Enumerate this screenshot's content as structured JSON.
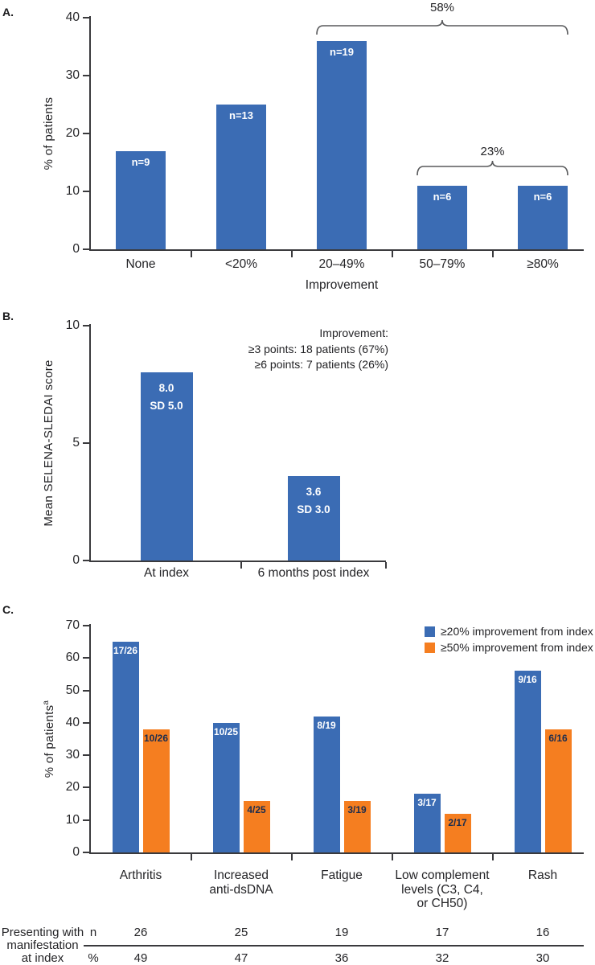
{
  "chart_data": [
    {
      "id": "A",
      "type": "bar",
      "panel_label": "A.",
      "ylabel": "% of patients",
      "ylim": [
        0,
        40
      ],
      "yticks": [
        0,
        10,
        20,
        30,
        40
      ],
      "xlabel": "Improvement",
      "categories": [
        "None",
        "<20%",
        "20–49%",
        "50–79%",
        "≥80%"
      ],
      "values": [
        17,
        25,
        36,
        11,
        11
      ],
      "bar_labels": [
        "n=9",
        "n=13",
        "n=19",
        "n=6",
        "n=6"
      ],
      "bar_color": "#3B6CB4",
      "bar_label_color": "#FFFFFF",
      "braces": [
        {
          "label": "58%",
          "from_index": 2,
          "to_index": 4
        },
        {
          "label": "23%",
          "from_index": 3,
          "to_index": 4
        }
      ],
      "legend_position": "none",
      "grid": "off"
    },
    {
      "id": "B",
      "type": "bar",
      "panel_label": "B.",
      "ylabel": "Mean SELENA-SLEDAI score",
      "ylim": [
        0,
        10
      ],
      "yticks": [
        0,
        5,
        10
      ],
      "categories": [
        "At index",
        "6 months post index"
      ],
      "values": [
        8.0,
        3.6
      ],
      "bar_labels": [
        [
          "8.0",
          "SD 5.0"
        ],
        [
          "3.6",
          "SD 3.0"
        ]
      ],
      "bar_color": "#3B6CB4",
      "bar_label_color": "#FFFFFF",
      "annotation": {
        "lines": [
          "Improvement:",
          "≥3 points: 18 patients (67%)",
          "≥6 points: 7 patients (26%)"
        ],
        "align": "right"
      },
      "legend_position": "none",
      "grid": "off"
    },
    {
      "id": "C",
      "type": "bar",
      "panel_label": "C.",
      "ylabel": "% of patients",
      "ylabel_superscript": "a",
      "ylim": [
        0,
        70
      ],
      "yticks": [
        0,
        10,
        20,
        30,
        40,
        50,
        60,
        70
      ],
      "categories": [
        [
          "Arthritis"
        ],
        [
          "Increased",
          "anti-dsDNA"
        ],
        [
          "Fatigue"
        ],
        [
          "Low complement",
          "levels (C3, C4,",
          "or CH50)"
        ],
        [
          "Rash"
        ]
      ],
      "series": [
        {
          "name": "≥20% improvement from index",
          "color": "#3B6CB4",
          "values": [
            65,
            40,
            42,
            18,
            56
          ],
          "bar_labels": [
            "17/26",
            "10/25",
            "8/19",
            "3/17",
            "9/16"
          ],
          "label_color": "#FFFFFF"
        },
        {
          "name": "≥50% improvement from index",
          "color": "#F57E20",
          "values": [
            38,
            16,
            16,
            12,
            38
          ],
          "bar_labels": [
            "10/26",
            "4/25",
            "3/19",
            "2/17",
            "6/16"
          ],
          "label_color": "#1B2C4E"
        }
      ],
      "legend_position": "top-right",
      "grid": "off"
    }
  ],
  "table": {
    "row_label_lines": [
      "Presenting with",
      "manifestation",
      "at index"
    ],
    "rows": [
      {
        "header": "n",
        "values": [
          "26",
          "25",
          "19",
          "17",
          "16"
        ]
      },
      {
        "header": "%",
        "values": [
          "49",
          "47",
          "36",
          "32",
          "30"
        ]
      }
    ]
  },
  "colors": {
    "blue": "#3B6CB4",
    "orange": "#F57E20",
    "axis": "#3A3A3D",
    "text": "#242427",
    "brace": "#58595B",
    "white_label": "#FFFFFF",
    "navy_label": "#1B2C4E"
  }
}
